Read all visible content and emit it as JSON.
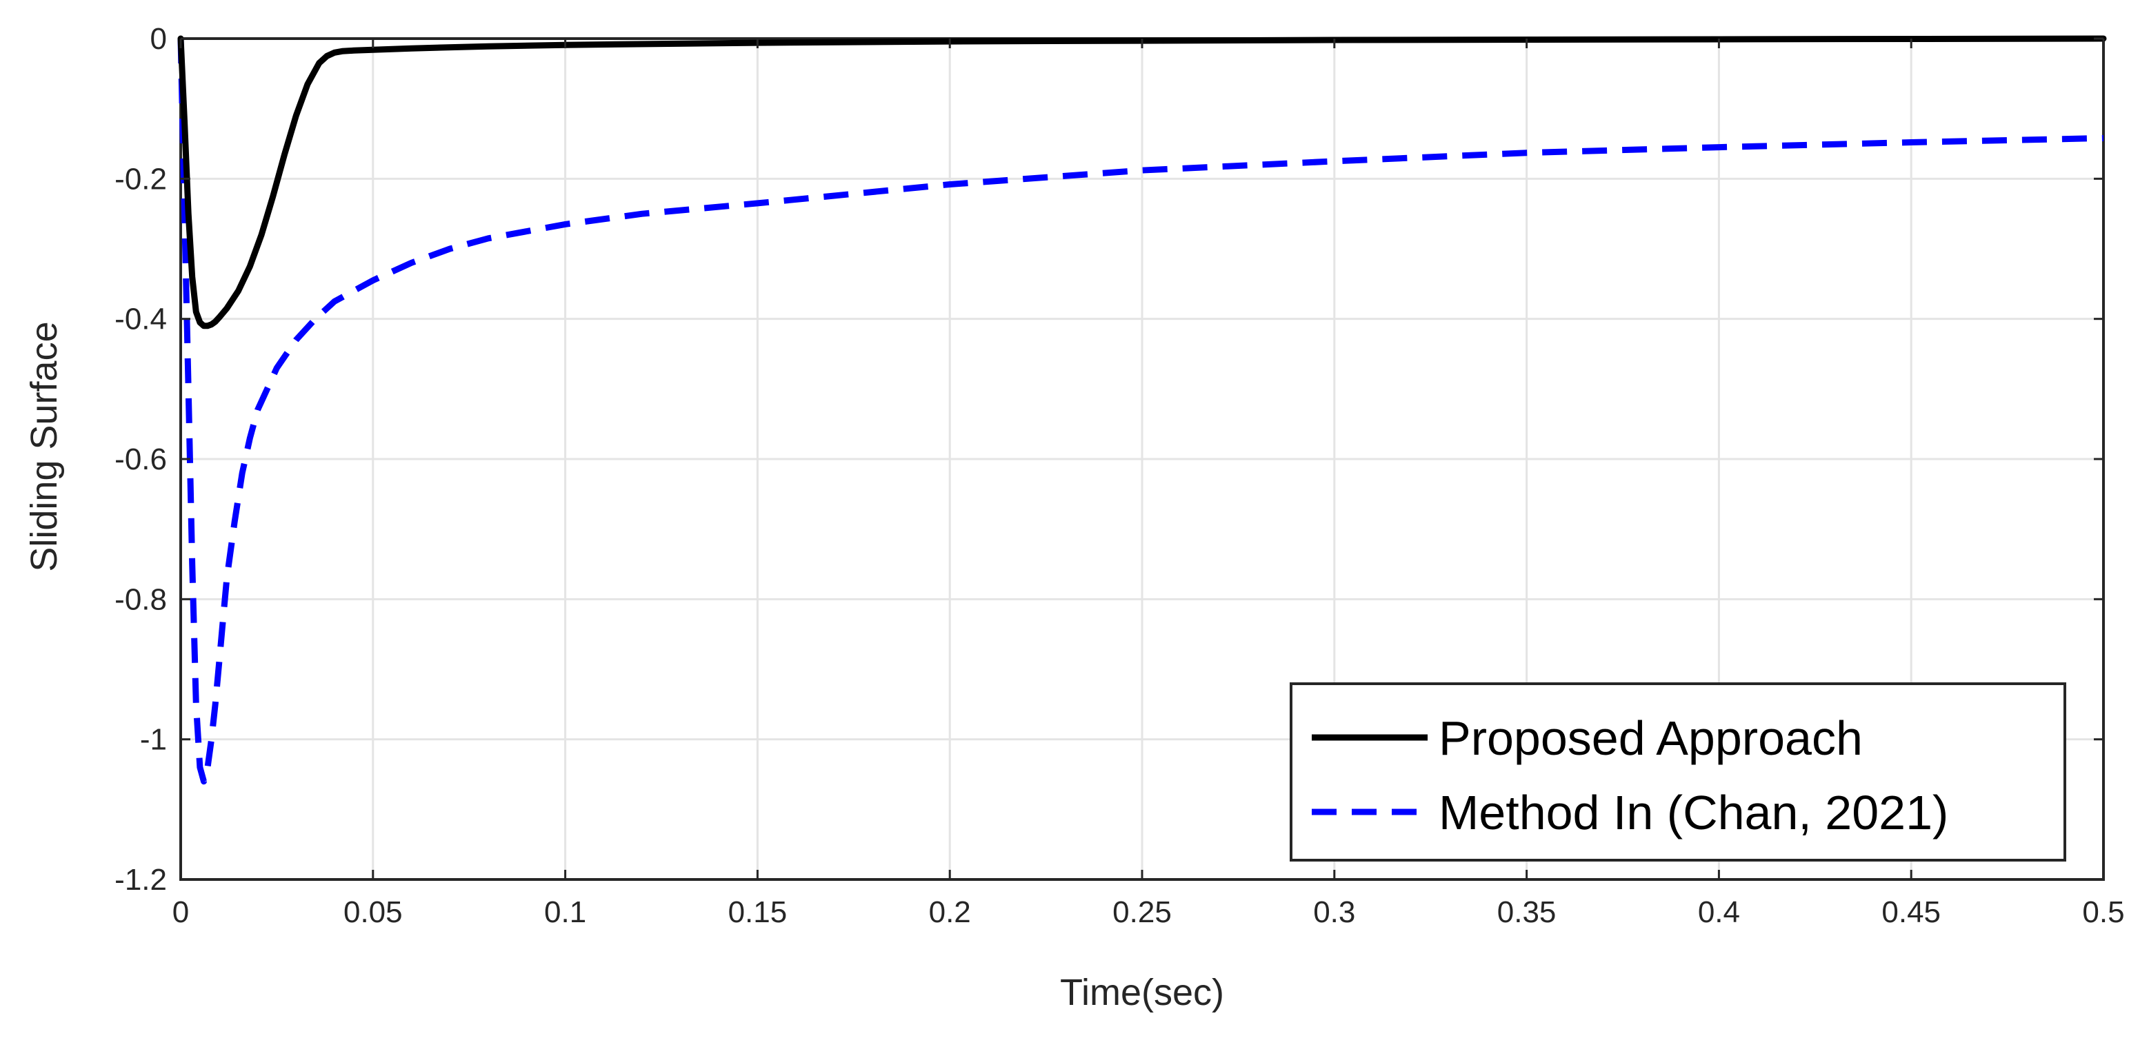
{
  "chart_data": {
    "type": "line",
    "title": "",
    "xlabel": "Time(sec)",
    "ylabel": "Sliding Surface",
    "xlim": [
      0,
      0.5
    ],
    "ylim": [
      -1.2,
      0
    ],
    "x_ticks": [
      0,
      0.05,
      0.1,
      0.15,
      0.2,
      0.25,
      0.3,
      0.35,
      0.4,
      0.45,
      0.5
    ],
    "x_tick_labels": [
      "0",
      "0.05",
      "0.1",
      "0.15",
      "0.2",
      "0.25",
      "0.3",
      "0.35",
      "0.4",
      "0.45",
      "0.5"
    ],
    "y_ticks": [
      0,
      -0.2,
      -0.4,
      -0.6,
      -0.8,
      -1,
      -1.2
    ],
    "y_tick_labels": [
      "0",
      "-0.2",
      "-0.4",
      "-0.6",
      "-0.8",
      "-1",
      "-1.2"
    ],
    "grid": true,
    "legend_position": "bottom-right",
    "series": [
      {
        "name": "Proposed Approach",
        "color": "#000000",
        "style": "solid",
        "x": [
          0,
          0.001,
          0.002,
          0.003,
          0.004,
          0.005,
          0.006,
          0.007,
          0.008,
          0.009,
          0.01,
          0.012,
          0.015,
          0.018,
          0.021,
          0.024,
          0.027,
          0.03,
          0.033,
          0.036,
          0.038,
          0.04,
          0.042,
          0.045,
          0.05,
          0.06,
          0.08,
          0.1,
          0.15,
          0.2,
          0.3,
          0.4,
          0.5
        ],
        "y": [
          0,
          -0.12,
          -0.25,
          -0.34,
          -0.39,
          -0.405,
          -0.41,
          -0.41,
          -0.408,
          -0.404,
          -0.398,
          -0.385,
          -0.36,
          -0.325,
          -0.28,
          -0.225,
          -0.165,
          -0.11,
          -0.065,
          -0.035,
          -0.025,
          -0.02,
          -0.018,
          -0.017,
          -0.016,
          -0.014,
          -0.011,
          -0.009,
          -0.006,
          -0.004,
          -0.002,
          -0.001,
          0
        ]
      },
      {
        "name": "Method In (Chan, 2021)",
        "color": "#0000ff",
        "style": "dashed",
        "x": [
          0,
          0.001,
          0.002,
          0.003,
          0.004,
          0.005,
          0.006,
          0.007,
          0.008,
          0.009,
          0.01,
          0.011,
          0.012,
          0.014,
          0.016,
          0.018,
          0.02,
          0.025,
          0.03,
          0.035,
          0.04,
          0.05,
          0.06,
          0.07,
          0.08,
          0.1,
          0.12,
          0.15,
          0.2,
          0.25,
          0.3,
          0.35,
          0.4,
          0.45,
          0.5
        ],
        "y": [
          0,
          -0.25,
          -0.5,
          -0.75,
          -0.95,
          -1.04,
          -1.06,
          -1.04,
          -1.0,
          -0.95,
          -0.89,
          -0.83,
          -0.77,
          -0.69,
          -0.62,
          -0.57,
          -0.53,
          -0.47,
          -0.43,
          -0.4,
          -0.375,
          -0.345,
          -0.32,
          -0.3,
          -0.285,
          -0.265,
          -0.25,
          -0.235,
          -0.208,
          -0.188,
          -0.175,
          -0.163,
          -0.155,
          -0.148,
          -0.142
        ]
      }
    ]
  }
}
